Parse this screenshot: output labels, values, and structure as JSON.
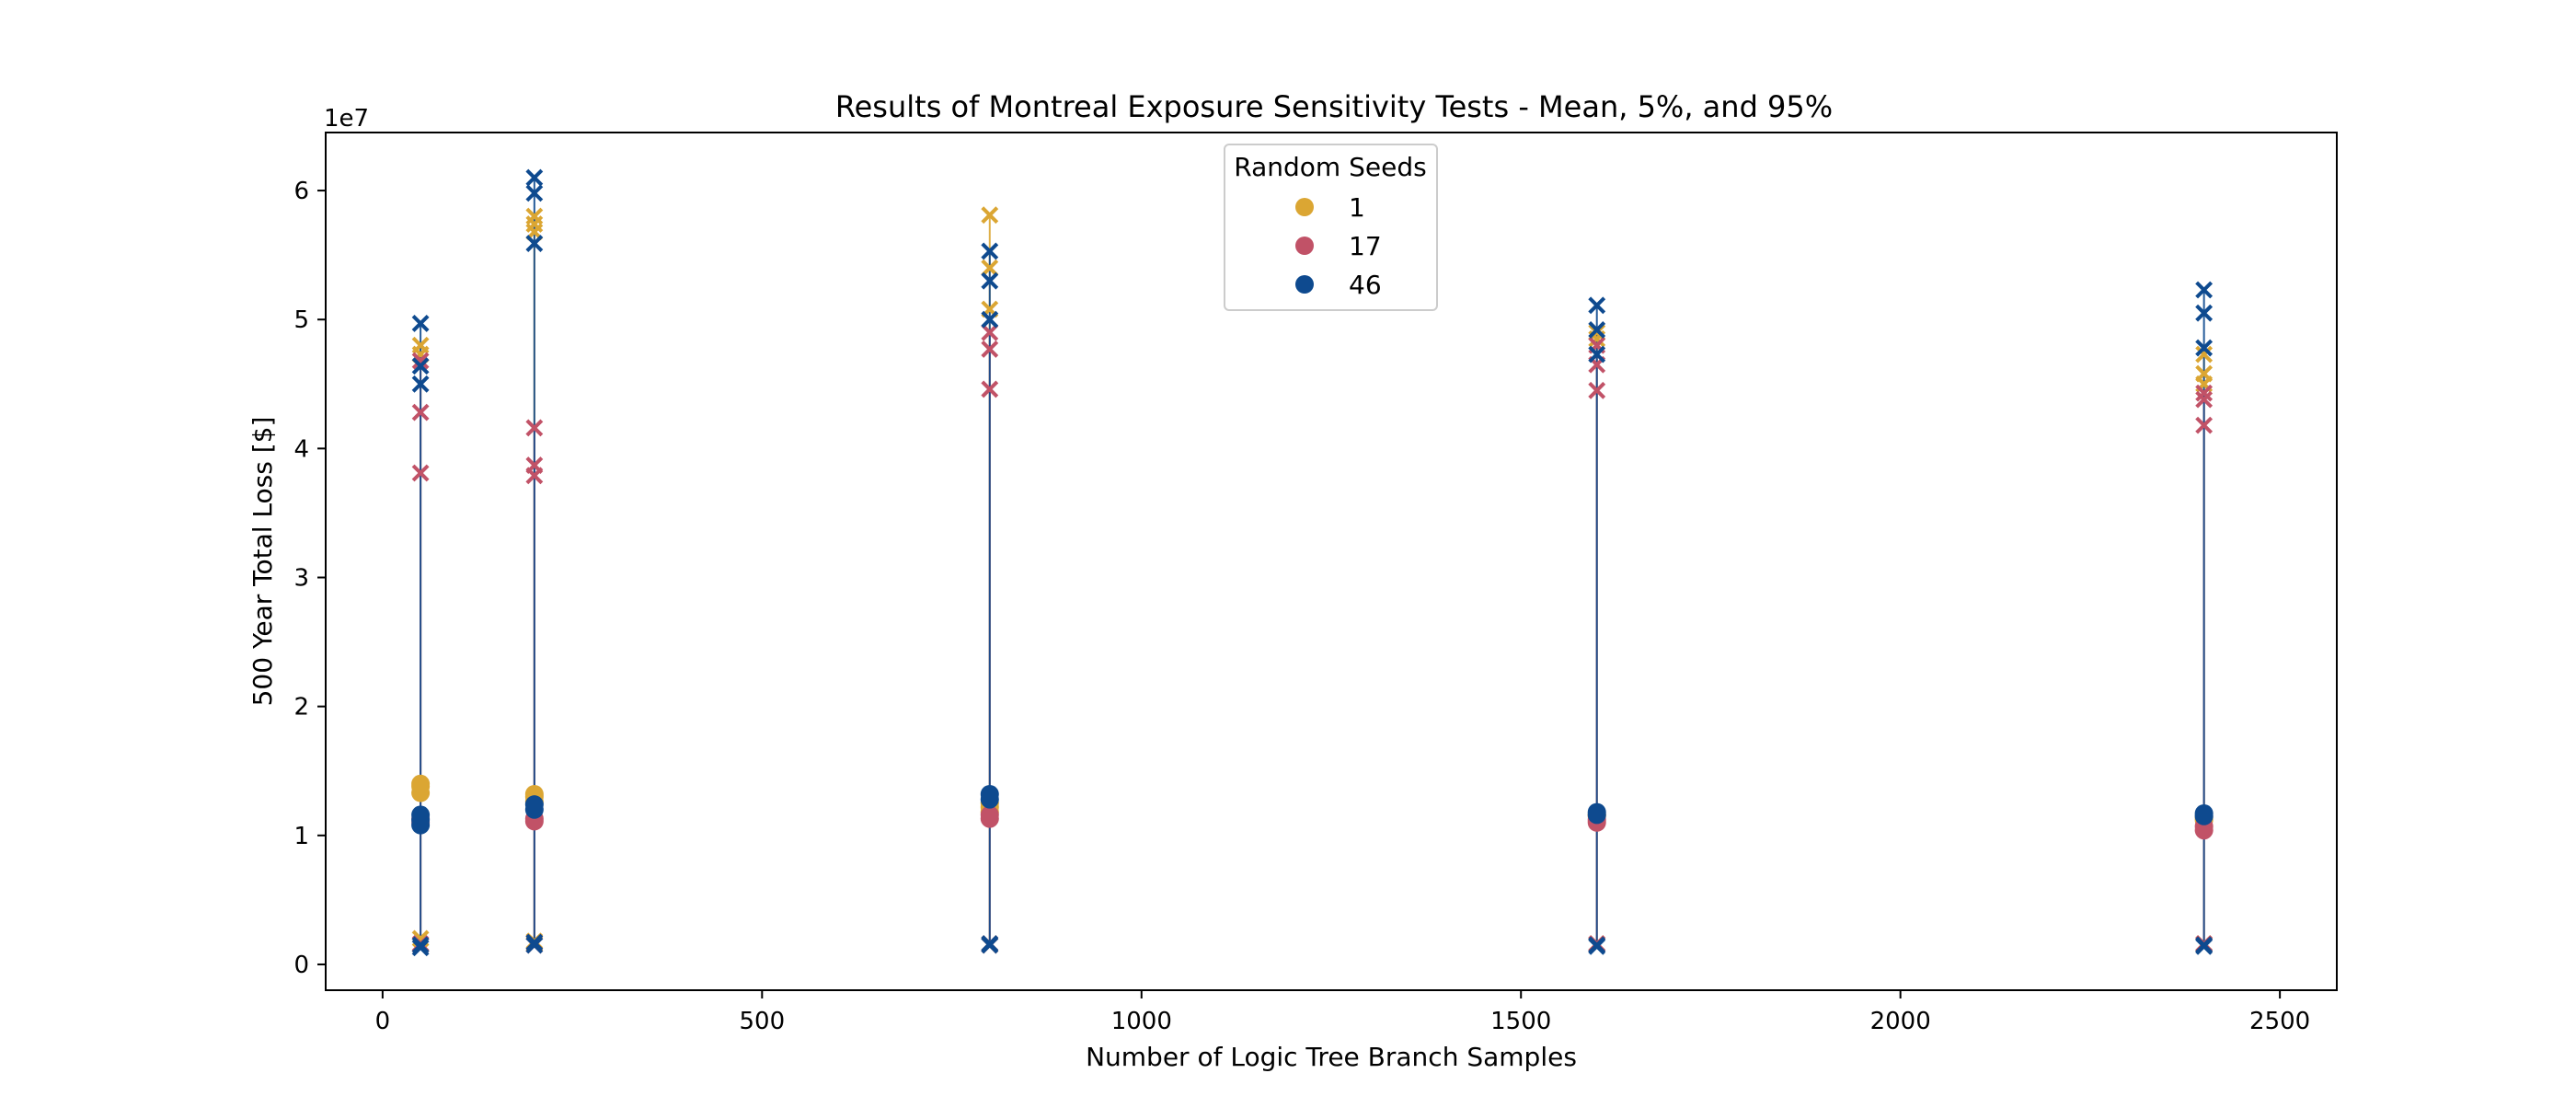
{
  "chart_data": {
    "type": "scatter",
    "title": "Results of Montreal Exposure Sensitivity Tests - Mean, 5%, and 95%",
    "xlabel": "Number of Logic Tree Branch Samples",
    "ylabel": "500 Year Total Loss [$]",
    "y_offset_label": "1e7",
    "xlim": [
      -75,
      2575
    ],
    "ylim": [
      -2.0,
      64.5
    ],
    "y_scale": 10000000,
    "x_ticks": [
      0,
      500,
      1000,
      1500,
      2000,
      2500
    ],
    "x_tick_labels": [
      "0",
      "500",
      "1000",
      "1500",
      "2000",
      "2500"
    ],
    "y_ticks": [
      0,
      10,
      20,
      30,
      40,
      50,
      60
    ],
    "y_tick_labels": [
      "0",
      "1",
      "2",
      "3",
      "4",
      "5",
      "6"
    ],
    "grid": false,
    "legend": {
      "title": "Random Seeds",
      "placement": "top-center",
      "entries": [
        "1",
        "17",
        "46"
      ]
    },
    "series": [
      {
        "name": "1",
        "color": "#dba633",
        "points": [
          {
            "x": 50,
            "mean": [
              13.3,
              13.8,
              14.0
            ],
            "p5": [
              1.5,
              2.0
            ],
            "p95": [
              47.3,
              48.0
            ]
          },
          {
            "x": 200,
            "mean": [
              12.6,
              13.0,
              13.2
            ],
            "p5": [
              1.6,
              1.8
            ],
            "p95": [
              56.8,
              57.4,
              58.0
            ]
          },
          {
            "x": 800,
            "mean": [
              11.8,
              12.2,
              12.5
            ],
            "p5": [
              1.6,
              1.5
            ],
            "p95": [
              50.8,
              54.0,
              58.1
            ]
          },
          {
            "x": 1600,
            "mean": [
              11.5,
              11.6
            ],
            "p5": [
              1.6,
              1.5
            ],
            "p95": [
              48.5,
              49.0
            ]
          },
          {
            "x": 2400,
            "mean": [
              11.2,
              11.4
            ],
            "p5": [
              1.5,
              1.6
            ],
            "p95": [
              45.0,
              45.8,
              47.3
            ]
          }
        ]
      },
      {
        "name": "17",
        "color": "#c15267",
        "points": [
          {
            "x": 50,
            "mean": [
              11.0,
              11.3
            ],
            "p5": [
              1.5,
              1.6
            ],
            "p95": [
              38.1,
              42.8,
              46.8
            ]
          },
          {
            "x": 200,
            "mean": [
              11.1,
              11.3
            ],
            "p5": [
              1.5,
              1.7
            ],
            "p95": [
              37.9,
              38.7,
              41.6
            ]
          },
          {
            "x": 800,
            "mean": [
              11.3,
              11.6
            ],
            "p5": [
              1.5,
              1.6
            ],
            "p95": [
              44.6,
              47.7,
              49.0
            ]
          },
          {
            "x": 1600,
            "mean": [
              11.0,
              11.2
            ],
            "p5": [
              1.5,
              1.6
            ],
            "p95": [
              44.5,
              46.5,
              48.0
            ]
          },
          {
            "x": 2400,
            "mean": [
              10.4,
              10.7
            ],
            "p5": [
              1.5,
              1.6
            ],
            "p95": [
              41.8,
              43.8,
              44.3
            ]
          }
        ]
      },
      {
        "name": "46",
        "color": "#0e4a8f",
        "points": [
          {
            "x": 50,
            "mean": [
              10.8,
              11.2,
              11.6
            ],
            "p5": [
              1.3,
              1.5
            ],
            "p95": [
              45.0,
              46.4,
              49.7
            ]
          },
          {
            "x": 200,
            "mean": [
              12.0,
              12.4
            ],
            "p5": [
              1.5,
              1.7
            ],
            "p95": [
              55.9,
              59.8,
              61.0
            ]
          },
          {
            "x": 800,
            "mean": [
              12.8,
              13.2
            ],
            "p5": [
              1.5,
              1.6
            ],
            "p95": [
              50.0,
              53.0,
              55.3
            ]
          },
          {
            "x": 1600,
            "mean": [
              11.6,
              11.8
            ],
            "p5": [
              1.5,
              1.4
            ],
            "p95": [
              47.3,
              49.2,
              51.1
            ]
          },
          {
            "x": 2400,
            "mean": [
              11.5,
              11.7
            ],
            "p5": [
              1.5,
              1.4
            ],
            "p95": [
              47.8,
              50.5,
              52.3
            ]
          }
        ]
      }
    ]
  }
}
